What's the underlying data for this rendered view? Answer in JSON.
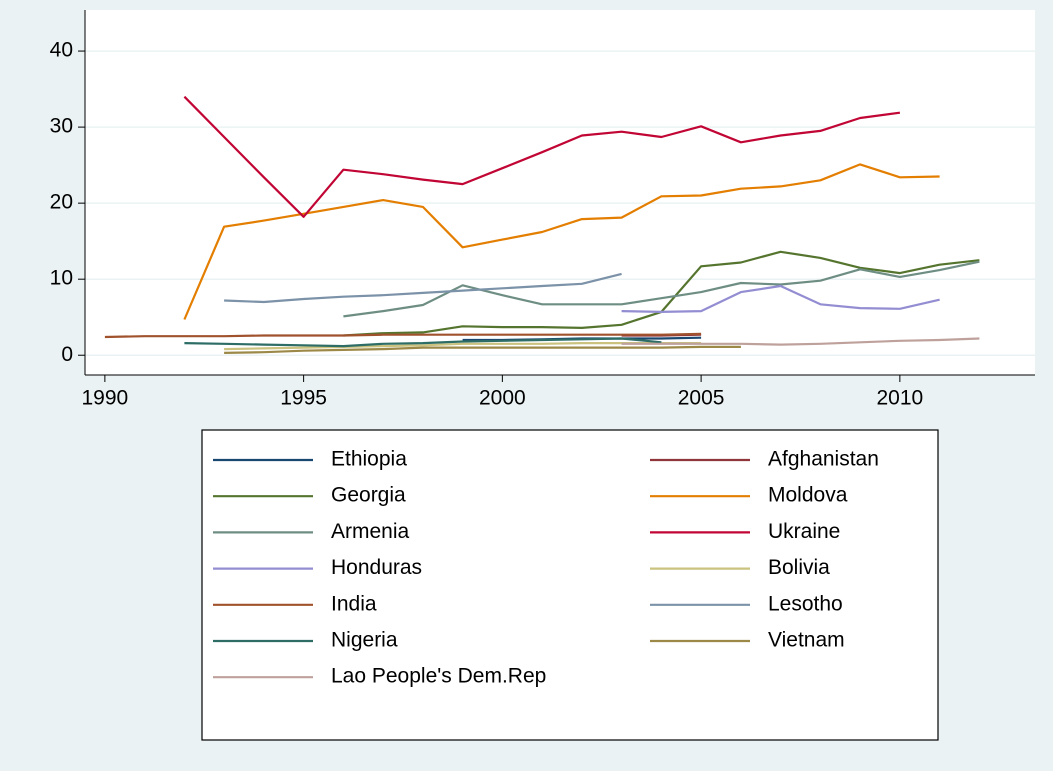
{
  "chart_data": {
    "type": "line",
    "x": [
      1990,
      1991,
      1992,
      1993,
      1994,
      1995,
      1996,
      1997,
      1998,
      1999,
      2000,
      2001,
      2002,
      2003,
      2004,
      2005,
      2006,
      2007,
      2008,
      2009,
      2010,
      2011,
      2012
    ],
    "xlim": [
      1989.5,
      2013.4
    ],
    "xticks": [
      1990,
      1995,
      2000,
      2005,
      2010
    ],
    "ylim": [
      -2.6,
      45.4
    ],
    "yticks": [
      0,
      10,
      20,
      30,
      40
    ],
    "grid": true,
    "legend_columns": 2,
    "series": [
      {
        "name": "Ethiopia",
        "color": "#1a476f",
        "values": [
          null,
          null,
          null,
          null,
          null,
          null,
          null,
          null,
          null,
          2.0,
          2.0,
          2.1,
          2.2,
          2.2,
          2.2,
          2.3,
          null,
          null,
          null,
          null,
          null,
          null,
          null
        ]
      },
      {
        "name": "Afghanistan",
        "color": "#90353b",
        "values": [
          null,
          null,
          null,
          null,
          null,
          null,
          null,
          null,
          null,
          null,
          null,
          null,
          null,
          2.6,
          2.6,
          2.7,
          null,
          null,
          null,
          null,
          null,
          null,
          null
        ]
      },
      {
        "name": "Georgia",
        "color": "#55752f",
        "values": [
          null,
          null,
          null,
          null,
          null,
          null,
          2.6,
          2.9,
          3.0,
          3.8,
          3.7,
          3.7,
          3.6,
          4.0,
          5.7,
          11.7,
          12.2,
          13.6,
          12.8,
          11.5,
          10.8,
          11.9,
          12.5
        ]
      },
      {
        "name": "Moldova",
        "color": "#e37e00",
        "values": [
          null,
          null,
          4.7,
          16.9,
          17.7,
          18.6,
          19.5,
          20.4,
          19.5,
          14.2,
          15.2,
          16.2,
          17.9,
          18.1,
          20.9,
          21.0,
          21.9,
          22.2,
          23.0,
          25.1,
          23.4,
          23.5,
          null
        ]
      },
      {
        "name": "Armenia",
        "color": "#6e8e84",
        "values": [
          null,
          null,
          null,
          null,
          null,
          null,
          5.1,
          5.8,
          6.6,
          9.2,
          7.9,
          6.7,
          6.7,
          6.7,
          7.5,
          8.3,
          9.5,
          9.3,
          9.8,
          11.3,
          10.3,
          11.2,
          12.3
        ]
      },
      {
        "name": "Ukraine",
        "color": "#c10534",
        "values": [
          null,
          null,
          34.0,
          28.7,
          23.4,
          18.2,
          24.4,
          23.8,
          23.1,
          22.5,
          24.6,
          26.7,
          28.9,
          29.4,
          28.7,
          30.1,
          28.0,
          28.9,
          29.5,
          31.2,
          31.9,
          null,
          null
        ]
      },
      {
        "name": "Honduras",
        "color": "#938dd2",
        "values": [
          null,
          null,
          null,
          null,
          null,
          null,
          null,
          null,
          null,
          null,
          null,
          null,
          null,
          5.8,
          5.7,
          5.8,
          8.3,
          9.1,
          6.7,
          6.2,
          6.1,
          7.3,
          null
        ]
      },
      {
        "name": "Bolivia",
        "color": "#cac27e",
        "values": [
          null,
          null,
          null,
          0.8,
          0.9,
          1.0,
          1.1,
          1.2,
          1.3,
          1.5,
          1.5,
          1.5,
          1.6,
          1.6,
          1.6,
          1.6,
          null,
          null,
          null,
          null,
          null,
          null,
          null
        ]
      },
      {
        "name": "India",
        "color": "#a0522d",
        "values": [
          2.4,
          2.5,
          2.5,
          2.5,
          2.6,
          2.6,
          2.6,
          2.7,
          2.7,
          2.7,
          2.7,
          2.7,
          2.7,
          2.7,
          2.7,
          2.8,
          null,
          null,
          null,
          null,
          null,
          null,
          null
        ]
      },
      {
        "name": "Lesotho",
        "color": "#7b92a8",
        "values": [
          null,
          null,
          null,
          7.2,
          7.0,
          7.4,
          7.7,
          7.9,
          8.2,
          8.5,
          8.8,
          9.1,
          9.4,
          10.7,
          null,
          null,
          null,
          null,
          null,
          null,
          null,
          null,
          null
        ]
      },
      {
        "name": "Nigeria",
        "color": "#2d6d66",
        "values": [
          null,
          null,
          1.6,
          1.5,
          1.4,
          1.3,
          1.2,
          1.5,
          1.6,
          1.8,
          1.9,
          2.0,
          2.1,
          2.2,
          1.7,
          null,
          null,
          null,
          null,
          null,
          null,
          null,
          null
        ]
      },
      {
        "name": "Vietnam",
        "color": "#9c8847",
        "values": [
          null,
          null,
          null,
          0.3,
          0.4,
          0.6,
          0.7,
          0.8,
          1.0,
          1.0,
          1.0,
          1.0,
          1.0,
          1.0,
          1.0,
          1.1,
          1.1,
          null,
          null,
          null,
          null,
          null,
          null
        ]
      },
      {
        "name": "Lao People's Dem.Rep",
        "color": "#bfa19c",
        "values": [
          null,
          null,
          null,
          null,
          null,
          null,
          null,
          null,
          null,
          null,
          null,
          null,
          null,
          1.5,
          1.5,
          1.5,
          1.5,
          1.4,
          1.5,
          1.7,
          1.9,
          2.0,
          2.2
        ]
      }
    ]
  }
}
